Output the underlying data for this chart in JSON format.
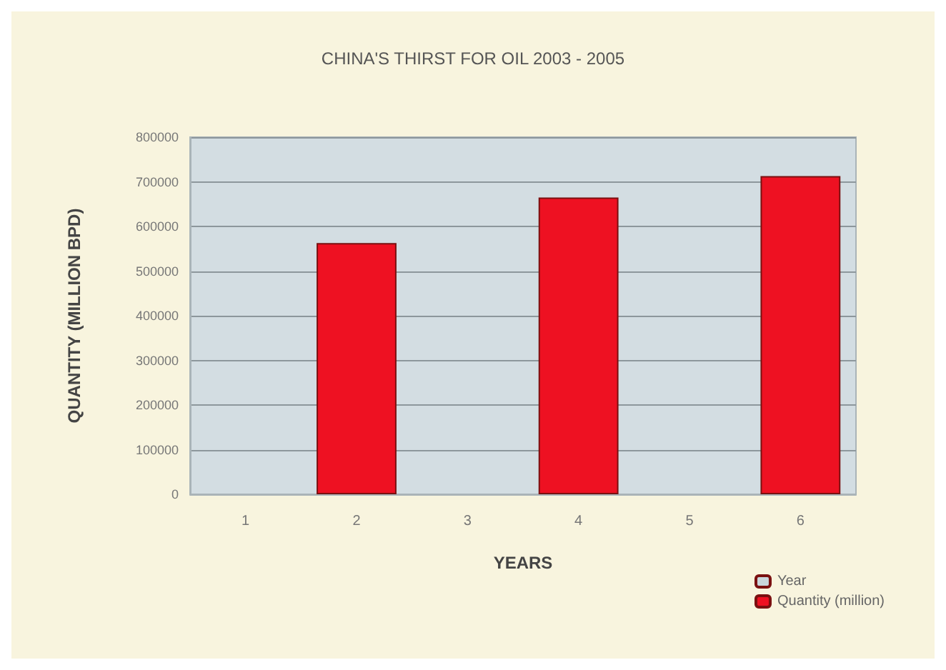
{
  "chart_data": {
    "type": "bar",
    "title": "CHINA'S THIRST FOR OIL 2003 - 2005",
    "xlabel": "YEARS",
    "ylabel": "QUANTITY (MILLION BPD)",
    "categories": [
      "1",
      "2",
      "3",
      "4",
      "5",
      "6"
    ],
    "series": [
      {
        "name": "Year",
        "color": "#c9d6dc",
        "values": [
          null,
          null,
          null,
          null,
          null,
          null
        ]
      },
      {
        "name": "Quantity (million)",
        "color": "#ee1122",
        "values": [
          null,
          563000,
          null,
          665000,
          null,
          713000
        ]
      }
    ],
    "ylim": [
      0,
      800000
    ],
    "yticks": [
      0,
      100000,
      200000,
      300000,
      400000,
      500000,
      600000,
      700000,
      800000
    ],
    "grid": "y",
    "legend": "bottom right"
  }
}
